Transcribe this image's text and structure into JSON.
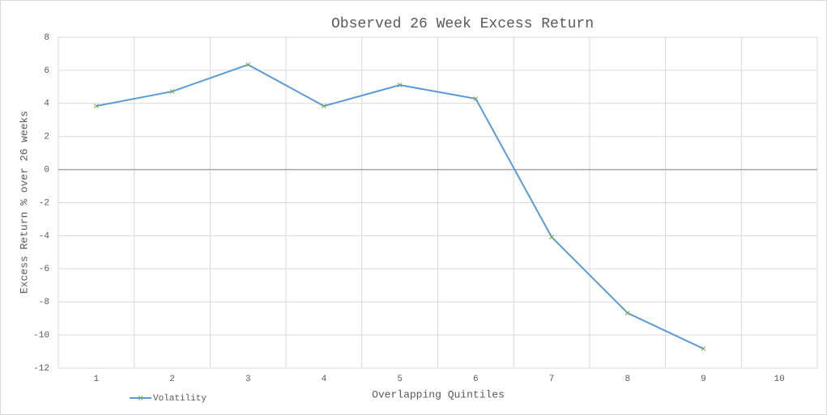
{
  "chart_data": {
    "type": "line",
    "title": "Observed 26 Week Excess Return",
    "x_label": "Overlapping  Quintiles",
    "y_label": "Excess Return % over 26 weeks",
    "categories": [
      "1",
      "2",
      "3",
      "4",
      "5",
      "6",
      "7",
      "8",
      "9",
      "10"
    ],
    "series": [
      {
        "name": "Volatility",
        "color": "#5b9bd5",
        "marker_color": "#70ad47",
        "values": [
          3.84,
          4.72,
          6.34,
          3.84,
          5.11,
          4.28,
          -4.08,
          -8.67,
          -10.83,
          null
        ]
      }
    ],
    "ylim": [
      -12,
      8
    ],
    "yticks": [
      -12,
      -10,
      -8,
      -6,
      -4,
      -2,
      0,
      2,
      4,
      6,
      8
    ],
    "grid": true,
    "legend": "bottom-left"
  }
}
